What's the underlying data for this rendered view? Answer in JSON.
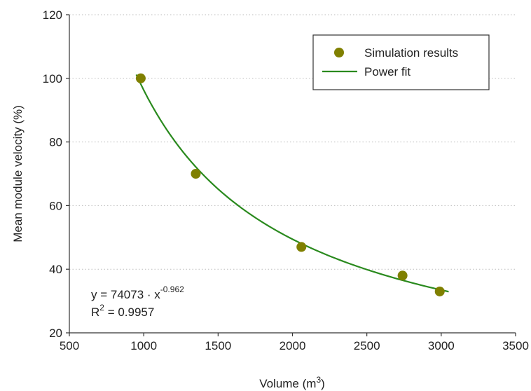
{
  "chart_data": {
    "type": "scatter",
    "xlabel": "Volume (m",
    "xlabel_sup": "3",
    "xlabel_end": ")",
    "ylabel": "Mean module velocity (%)",
    "xlim": [
      500,
      3500
    ],
    "ylim": [
      20,
      120
    ],
    "xticks": [
      500,
      1000,
      1500,
      2000,
      2500,
      3000,
      3500
    ],
    "yticks": [
      20,
      40,
      60,
      80,
      100,
      120
    ],
    "grid": "horizontal-dotted",
    "legend_position": "top-right",
    "series": [
      {
        "name": "Simulation results",
        "kind": "scatter",
        "color": "#808000",
        "x": [
          980,
          1350,
          2060,
          2740,
          2990
        ],
        "y": [
          100,
          70,
          47,
          38,
          33
        ]
      },
      {
        "name": "Power fit",
        "kind": "line",
        "color": "#2a8a1e",
        "coefficient": 74073,
        "exponent": -0.962,
        "x_range": [
          950,
          3050
        ]
      }
    ],
    "annotation": {
      "line1_prefix": "y = 74073 · x",
      "line1_sup": "-0.962",
      "line2_prefix": "R",
      "line2_sup": "2",
      "line2_suffix": " = 0.9957"
    }
  }
}
